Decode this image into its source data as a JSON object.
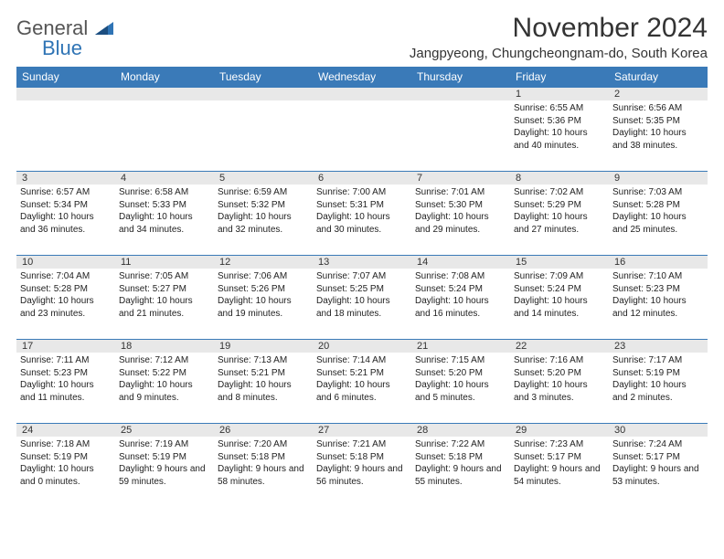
{
  "logo": {
    "text1": "General",
    "text2": "Blue"
  },
  "title": "November 2024",
  "location": "Jangpyeong, Chungcheongnam-do, South Korea",
  "colors": {
    "header_bg": "#3a7ab8",
    "header_text": "#ffffff",
    "daynum_bg": "#e8e8e8",
    "border": "#3a7ab8",
    "text": "#222222",
    "logo_gray": "#555555",
    "logo_blue": "#2f74b5"
  },
  "day_names": [
    "Sunday",
    "Monday",
    "Tuesday",
    "Wednesday",
    "Thursday",
    "Friday",
    "Saturday"
  ],
  "weeks": [
    [
      {
        "n": "",
        "lines": []
      },
      {
        "n": "",
        "lines": []
      },
      {
        "n": "",
        "lines": []
      },
      {
        "n": "",
        "lines": []
      },
      {
        "n": "",
        "lines": []
      },
      {
        "n": "1",
        "lines": [
          "Sunrise: 6:55 AM",
          "Sunset: 5:36 PM",
          "Daylight: 10 hours and 40 minutes."
        ]
      },
      {
        "n": "2",
        "lines": [
          "Sunrise: 6:56 AM",
          "Sunset: 5:35 PM",
          "Daylight: 10 hours and 38 minutes."
        ]
      }
    ],
    [
      {
        "n": "3",
        "lines": [
          "Sunrise: 6:57 AM",
          "Sunset: 5:34 PM",
          "Daylight: 10 hours and 36 minutes."
        ]
      },
      {
        "n": "4",
        "lines": [
          "Sunrise: 6:58 AM",
          "Sunset: 5:33 PM",
          "Daylight: 10 hours and 34 minutes."
        ]
      },
      {
        "n": "5",
        "lines": [
          "Sunrise: 6:59 AM",
          "Sunset: 5:32 PM",
          "Daylight: 10 hours and 32 minutes."
        ]
      },
      {
        "n": "6",
        "lines": [
          "Sunrise: 7:00 AM",
          "Sunset: 5:31 PM",
          "Daylight: 10 hours and 30 minutes."
        ]
      },
      {
        "n": "7",
        "lines": [
          "Sunrise: 7:01 AM",
          "Sunset: 5:30 PM",
          "Daylight: 10 hours and 29 minutes."
        ]
      },
      {
        "n": "8",
        "lines": [
          "Sunrise: 7:02 AM",
          "Sunset: 5:29 PM",
          "Daylight: 10 hours and 27 minutes."
        ]
      },
      {
        "n": "9",
        "lines": [
          "Sunrise: 7:03 AM",
          "Sunset: 5:28 PM",
          "Daylight: 10 hours and 25 minutes."
        ]
      }
    ],
    [
      {
        "n": "10",
        "lines": [
          "Sunrise: 7:04 AM",
          "Sunset: 5:28 PM",
          "Daylight: 10 hours and 23 minutes."
        ]
      },
      {
        "n": "11",
        "lines": [
          "Sunrise: 7:05 AM",
          "Sunset: 5:27 PM",
          "Daylight: 10 hours and 21 minutes."
        ]
      },
      {
        "n": "12",
        "lines": [
          "Sunrise: 7:06 AM",
          "Sunset: 5:26 PM",
          "Daylight: 10 hours and 19 minutes."
        ]
      },
      {
        "n": "13",
        "lines": [
          "Sunrise: 7:07 AM",
          "Sunset: 5:25 PM",
          "Daylight: 10 hours and 18 minutes."
        ]
      },
      {
        "n": "14",
        "lines": [
          "Sunrise: 7:08 AM",
          "Sunset: 5:24 PM",
          "Daylight: 10 hours and 16 minutes."
        ]
      },
      {
        "n": "15",
        "lines": [
          "Sunrise: 7:09 AM",
          "Sunset: 5:24 PM",
          "Daylight: 10 hours and 14 minutes."
        ]
      },
      {
        "n": "16",
        "lines": [
          "Sunrise: 7:10 AM",
          "Sunset: 5:23 PM",
          "Daylight: 10 hours and 12 minutes."
        ]
      }
    ],
    [
      {
        "n": "17",
        "lines": [
          "Sunrise: 7:11 AM",
          "Sunset: 5:23 PM",
          "Daylight: 10 hours and 11 minutes."
        ]
      },
      {
        "n": "18",
        "lines": [
          "Sunrise: 7:12 AM",
          "Sunset: 5:22 PM",
          "Daylight: 10 hours and 9 minutes."
        ]
      },
      {
        "n": "19",
        "lines": [
          "Sunrise: 7:13 AM",
          "Sunset: 5:21 PM",
          "Daylight: 10 hours and 8 minutes."
        ]
      },
      {
        "n": "20",
        "lines": [
          "Sunrise: 7:14 AM",
          "Sunset: 5:21 PM",
          "Daylight: 10 hours and 6 minutes."
        ]
      },
      {
        "n": "21",
        "lines": [
          "Sunrise: 7:15 AM",
          "Sunset: 5:20 PM",
          "Daylight: 10 hours and 5 minutes."
        ]
      },
      {
        "n": "22",
        "lines": [
          "Sunrise: 7:16 AM",
          "Sunset: 5:20 PM",
          "Daylight: 10 hours and 3 minutes."
        ]
      },
      {
        "n": "23",
        "lines": [
          "Sunrise: 7:17 AM",
          "Sunset: 5:19 PM",
          "Daylight: 10 hours and 2 minutes."
        ]
      }
    ],
    [
      {
        "n": "24",
        "lines": [
          "Sunrise: 7:18 AM",
          "Sunset: 5:19 PM",
          "Daylight: 10 hours and 0 minutes."
        ]
      },
      {
        "n": "25",
        "lines": [
          "Sunrise: 7:19 AM",
          "Sunset: 5:19 PM",
          "Daylight: 9 hours and 59 minutes."
        ]
      },
      {
        "n": "26",
        "lines": [
          "Sunrise: 7:20 AM",
          "Sunset: 5:18 PM",
          "Daylight: 9 hours and 58 minutes."
        ]
      },
      {
        "n": "27",
        "lines": [
          "Sunrise: 7:21 AM",
          "Sunset: 5:18 PM",
          "Daylight: 9 hours and 56 minutes."
        ]
      },
      {
        "n": "28",
        "lines": [
          "Sunrise: 7:22 AM",
          "Sunset: 5:18 PM",
          "Daylight: 9 hours and 55 minutes."
        ]
      },
      {
        "n": "29",
        "lines": [
          "Sunrise: 7:23 AM",
          "Sunset: 5:17 PM",
          "Daylight: 9 hours and 54 minutes."
        ]
      },
      {
        "n": "30",
        "lines": [
          "Sunrise: 7:24 AM",
          "Sunset: 5:17 PM",
          "Daylight: 9 hours and 53 minutes."
        ]
      }
    ]
  ]
}
